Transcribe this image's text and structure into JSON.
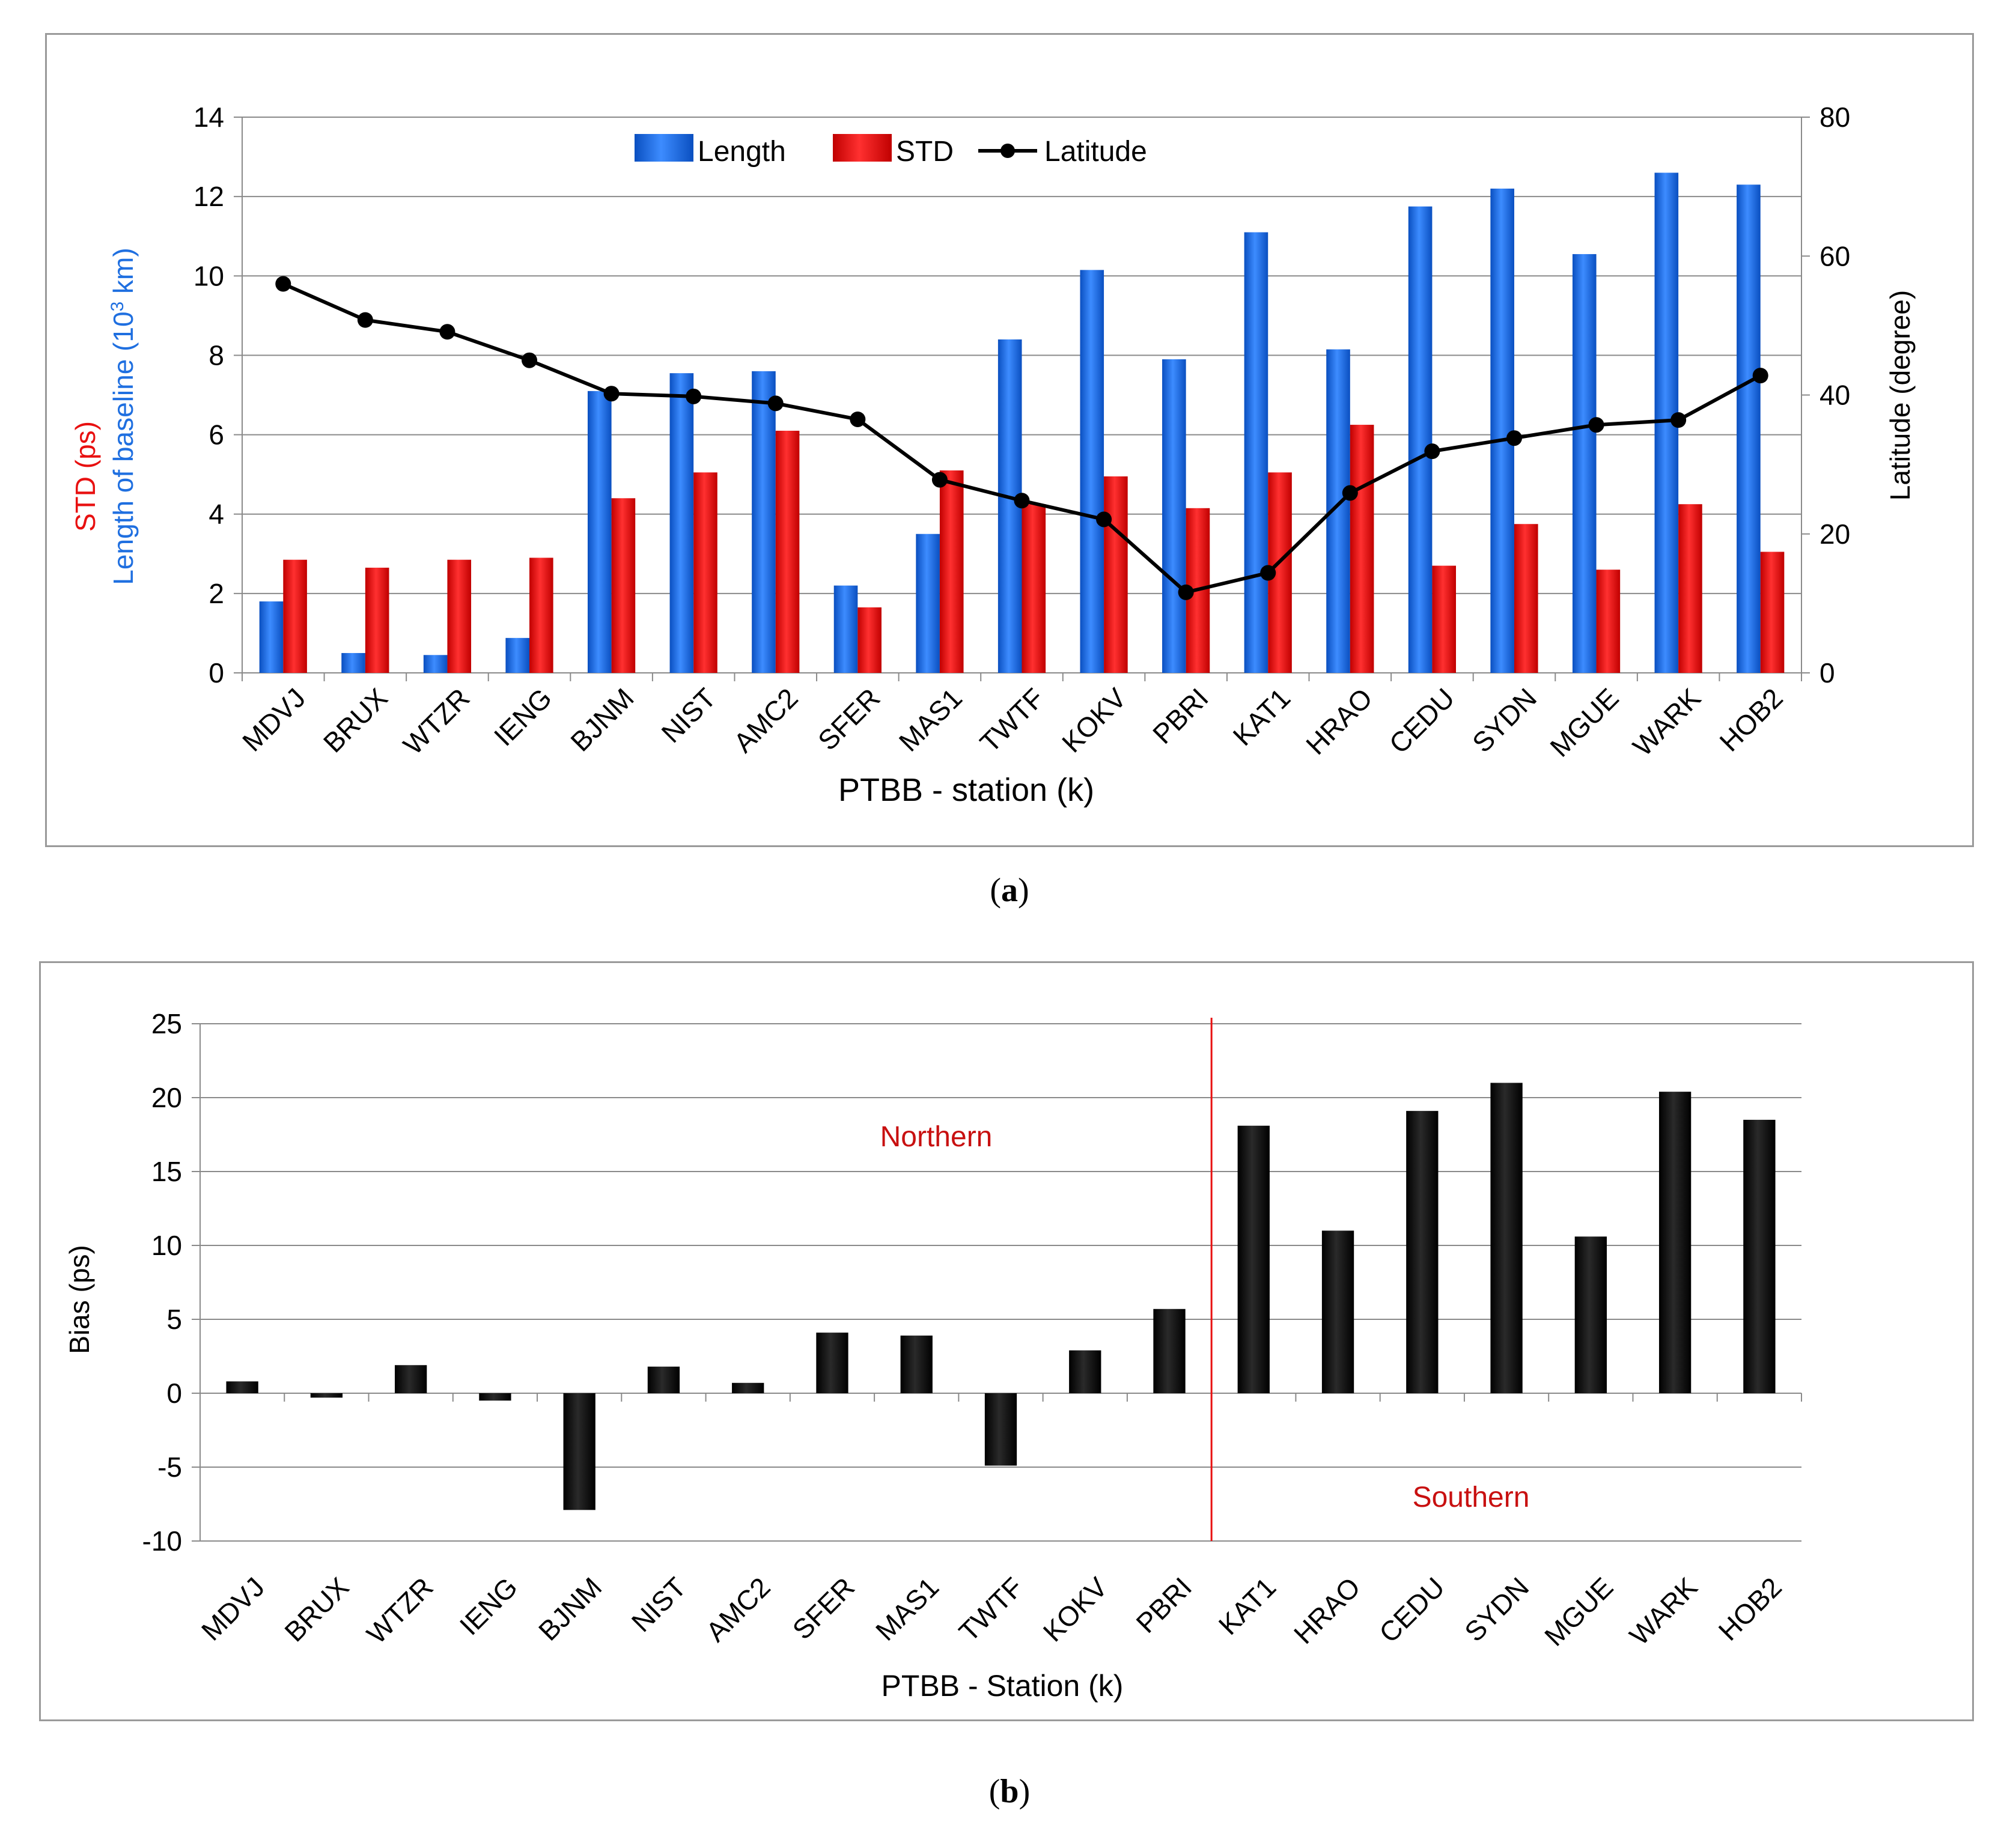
{
  "chart_data": [
    {
      "type": "bar",
      "panel": "a",
      "categories": [
        "MDVJ",
        "BRUX",
        "WTZR",
        "IENG",
        "BJNM",
        "NIST",
        "AMC2",
        "SFER",
        "MAS1",
        "TWTF",
        "KOKV",
        "PBRI",
        "KAT1",
        "HRAO",
        "CEDU",
        "SYDN",
        "MGUE",
        "WARK",
        "HOB2"
      ],
      "series": [
        {
          "name": "Length",
          "color": "#1f6fe0",
          "axis": "left",
          "values": [
            1.8,
            0.5,
            0.45,
            0.88,
            7.1,
            7.55,
            7.6,
            2.2,
            3.5,
            8.4,
            10.15,
            7.9,
            11.1,
            8.15,
            11.75,
            12.2,
            10.55,
            12.6,
            12.3
          ]
        },
        {
          "name": "STD",
          "color": "#e81010",
          "axis": "left",
          "values": [
            2.85,
            2.65,
            2.85,
            2.9,
            4.4,
            5.05,
            6.1,
            1.65,
            5.1,
            4.25,
            4.95,
            4.15,
            5.05,
            6.25,
            2.7,
            3.75,
            2.6,
            4.25,
            3.05
          ]
        },
        {
          "name": "Latitude",
          "color": "#000000",
          "axis": "right",
          "type": "line",
          "values": [
            56,
            50.8,
            49.1,
            45,
            40.2,
            39.8,
            38.8,
            36.5,
            27.8,
            24.8,
            22.1,
            11.6,
            14.4,
            25.9,
            31.9,
            33.8,
            35.7,
            36.4,
            42.8
          ]
        }
      ],
      "legend": {
        "items": [
          "Length",
          "STD",
          "Latitude"
        ],
        "position": "top"
      },
      "xlabel": "PTBB - station (k)",
      "ylabel_std": "STD  (ps)",
      "ylabel_len": "Length of baseline (10",
      "ylabel_len_sup": "3",
      "ylabel_len_end": " km)",
      "ylabel_right": "Latitude (degree)",
      "ylim": [
        0,
        14
      ],
      "yticks": [
        "0",
        "2",
        "4",
        "6",
        "8",
        "10",
        "12",
        "14"
      ],
      "y2lim": [
        0,
        80
      ],
      "y2ticks": [
        "0",
        "20",
        "40",
        "60",
        "80"
      ],
      "grid": true
    },
    {
      "type": "bar",
      "panel": "b",
      "categories": [
        "MDVJ",
        "BRUX",
        "WTZR",
        "IENG",
        "BJNM",
        "NIST",
        "AMC2",
        "SFER",
        "MAS1",
        "TWTF",
        "KOKV",
        "PBRI",
        "KAT1",
        "HRAO",
        "CEDU",
        "SYDN",
        "MGUE",
        "WARK",
        "HOB2"
      ],
      "series": [
        {
          "name": "Bias",
          "color": "#000000",
          "values": [
            0.8,
            -0.3,
            1.9,
            -0.5,
            -7.9,
            1.8,
            0.7,
            4.1,
            3.9,
            -4.9,
            2.9,
            5.7,
            18.1,
            11.0,
            19.1,
            21.0,
            10.6,
            20.4,
            18.5
          ]
        }
      ],
      "xlabel": "PTBB - Station (k)",
      "ylabel": "Bias  (ps)",
      "ylim": [
        -10,
        25
      ],
      "yticks": [
        "-10",
        "-5",
        "0",
        "5",
        "10",
        "15",
        "20",
        "25"
      ],
      "annotations": {
        "northern": "Northern",
        "southern": "Southern"
      },
      "divider_after_category": "PBRI",
      "grid": true
    }
  ],
  "captions": {
    "a_open": "(",
    "a_letter": "a",
    "a_close": ")",
    "b_open": "(",
    "b_letter": "b",
    "b_close": ")"
  }
}
